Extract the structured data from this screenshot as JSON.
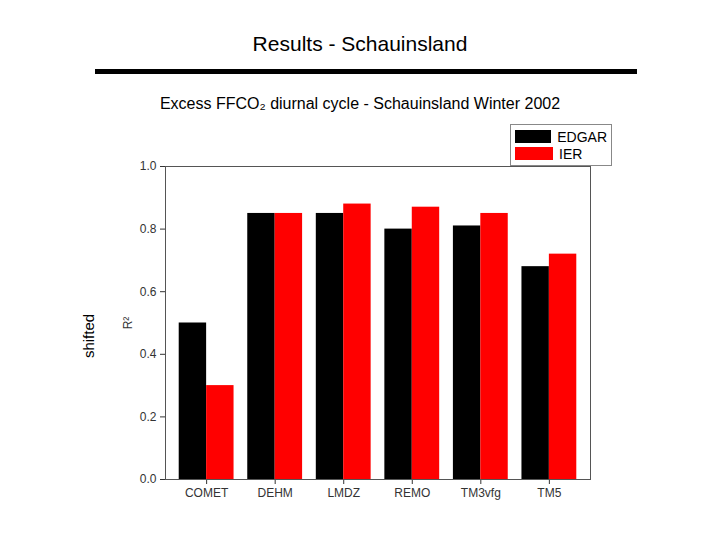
{
  "chart_data": {
    "type": "bar",
    "title": "Results - Schauinsland",
    "subtitle": "Excess FFCO₂ diurnal cycle - Schauinsland  Winter 2002",
    "ylabel": "R²",
    "annotations": [
      "shifted"
    ],
    "categories": [
      "COMET",
      "DEHM",
      "LMDZ",
      "REMO",
      "TM3vfg",
      "TM5"
    ],
    "series": [
      {
        "name": "EDGAR",
        "color": "#000000",
        "values": [
          0.5,
          0.85,
          0.85,
          0.8,
          0.81,
          0.68
        ]
      },
      {
        "name": "IER",
        "color": "#ff0000",
        "values": [
          0.3,
          0.85,
          0.88,
          0.87,
          0.85,
          0.72
        ]
      }
    ],
    "ylim": [
      0,
      1.0
    ],
    "yticks": [
      {
        "value": 0,
        "label": "0.0"
      },
      0.2,
      0.4,
      0.6,
      0.8,
      {
        "value": 1.0,
        "label": "1.0"
      }
    ],
    "legend": "top-right",
    "grid": false
  }
}
